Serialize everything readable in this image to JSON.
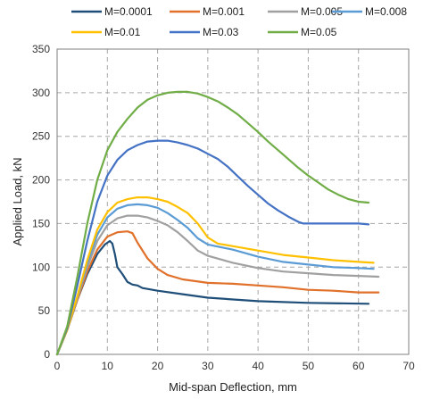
{
  "chart_data": {
    "type": "line",
    "title": "",
    "xlabel": "Mid-span Deflection, mm",
    "ylabel": "Applied Load, kN",
    "xlim": [
      0,
      70
    ],
    "ylim": [
      0,
      350
    ],
    "xticks": [
      "0",
      "10",
      "20",
      "30",
      "40",
      "50",
      "60",
      "70"
    ],
    "yticks": [
      "0",
      "50",
      "100",
      "150",
      "200",
      "250",
      "300",
      "350"
    ],
    "grid": true,
    "legend_position": "top",
    "series": [
      {
        "name": "M=0.0001",
        "color": "#1f4e79",
        "points": [
          [
            0,
            0
          ],
          [
            2,
            28
          ],
          [
            4,
            62
          ],
          [
            6,
            92
          ],
          [
            8,
            115
          ],
          [
            9.5,
            126
          ],
          [
            10.5,
            130
          ],
          [
            11,
            127
          ],
          [
            11.5,
            115
          ],
          [
            12,
            100
          ],
          [
            13,
            92
          ],
          [
            14,
            83
          ],
          [
            15,
            80
          ],
          [
            16,
            79
          ],
          [
            17,
            76
          ],
          [
            20,
            73
          ],
          [
            25,
            69
          ],
          [
            30,
            65
          ],
          [
            40,
            61
          ],
          [
            50,
            59
          ],
          [
            62,
            58
          ]
        ]
      },
      {
        "name": "M=0.001",
        "color": "#e0702a",
        "points": [
          [
            0,
            0
          ],
          [
            2,
            28
          ],
          [
            4,
            62
          ],
          [
            6,
            95
          ],
          [
            8,
            120
          ],
          [
            10,
            135
          ],
          [
            12,
            140
          ],
          [
            14,
            141
          ],
          [
            15,
            139
          ],
          [
            16,
            128
          ],
          [
            18,
            110
          ],
          [
            20,
            98
          ],
          [
            22,
            91
          ],
          [
            25,
            86
          ],
          [
            30,
            82
          ],
          [
            35,
            81
          ],
          [
            40,
            79
          ],
          [
            45,
            77
          ],
          [
            50,
            74
          ],
          [
            55,
            73
          ],
          [
            60,
            71
          ],
          [
            64,
            71
          ]
        ]
      },
      {
        "name": "M=0.005",
        "color": "#a0a0a0",
        "points": [
          [
            0,
            0
          ],
          [
            2,
            28
          ],
          [
            4,
            64
          ],
          [
            6,
            100
          ],
          [
            8,
            130
          ],
          [
            10,
            148
          ],
          [
            12,
            156
          ],
          [
            14,
            159
          ],
          [
            16,
            159
          ],
          [
            18,
            157
          ],
          [
            20,
            153
          ],
          [
            22,
            148
          ],
          [
            24,
            140
          ],
          [
            26,
            130
          ],
          [
            28,
            119
          ],
          [
            30,
            113
          ],
          [
            35,
            105
          ],
          [
            40,
            99
          ],
          [
            45,
            95
          ],
          [
            50,
            93
          ],
          [
            55,
            91
          ],
          [
            60,
            90
          ],
          [
            64,
            89
          ]
        ]
      },
      {
        "name": "M=0.008",
        "color": "#5b9bd5",
        "points": [
          [
            0,
            0
          ],
          [
            2,
            28
          ],
          [
            4,
            65
          ],
          [
            6,
            105
          ],
          [
            8,
            137
          ],
          [
            10,
            157
          ],
          [
            12,
            167
          ],
          [
            14,
            171
          ],
          [
            16,
            172
          ],
          [
            18,
            171
          ],
          [
            20,
            168
          ],
          [
            22,
            162
          ],
          [
            24,
            154
          ],
          [
            26,
            145
          ],
          [
            28,
            133
          ],
          [
            30,
            126
          ],
          [
            35,
            120
          ],
          [
            40,
            112
          ],
          [
            45,
            106
          ],
          [
            50,
            103
          ],
          [
            55,
            100
          ],
          [
            60,
            99
          ],
          [
            63,
            98
          ]
        ]
      },
      {
        "name": "M=0.01",
        "color": "#ffc000",
        "points": [
          [
            0,
            0
          ],
          [
            2,
            28
          ],
          [
            4,
            66
          ],
          [
            6,
            108
          ],
          [
            8,
            143
          ],
          [
            10,
            163
          ],
          [
            12,
            174
          ],
          [
            14,
            178
          ],
          [
            16,
            180
          ],
          [
            18,
            180
          ],
          [
            20,
            178
          ],
          [
            22,
            175
          ],
          [
            24,
            169
          ],
          [
            26,
            162
          ],
          [
            28,
            150
          ],
          [
            30,
            134
          ],
          [
            32,
            127
          ],
          [
            35,
            124
          ],
          [
            40,
            119
          ],
          [
            45,
            114
          ],
          [
            50,
            111
          ],
          [
            55,
            108
          ],
          [
            60,
            106
          ],
          [
            63,
            105
          ]
        ]
      },
      {
        "name": "M=0.03",
        "color": "#4472c4",
        "points": [
          [
            0,
            0
          ],
          [
            2,
            30
          ],
          [
            4,
            78
          ],
          [
            6,
            130
          ],
          [
            8,
            175
          ],
          [
            10,
            205
          ],
          [
            12,
            223
          ],
          [
            14,
            234
          ],
          [
            16,
            240
          ],
          [
            18,
            244
          ],
          [
            20,
            245
          ],
          [
            22,
            245
          ],
          [
            24,
            243
          ],
          [
            26,
            240
          ],
          [
            28,
            236
          ],
          [
            30,
            230
          ],
          [
            32,
            224
          ],
          [
            34,
            215
          ],
          [
            36,
            204
          ],
          [
            38,
            193
          ],
          [
            40,
            183
          ],
          [
            42,
            173
          ],
          [
            44,
            165
          ],
          [
            46,
            158
          ],
          [
            48,
            152
          ],
          [
            49,
            150
          ],
          [
            50,
            150
          ],
          [
            55,
            150
          ],
          [
            60,
            150
          ],
          [
            62,
            149
          ]
        ]
      },
      {
        "name": "M=0.05",
        "color": "#70ad47",
        "points": [
          [
            0,
            0
          ],
          [
            2,
            32
          ],
          [
            4,
            88
          ],
          [
            6,
            150
          ],
          [
            8,
            200
          ],
          [
            10,
            234
          ],
          [
            12,
            255
          ],
          [
            14,
            270
          ],
          [
            16,
            283
          ],
          [
            18,
            292
          ],
          [
            20,
            297
          ],
          [
            22,
            300
          ],
          [
            24,
            301
          ],
          [
            26,
            301
          ],
          [
            28,
            299
          ],
          [
            30,
            295
          ],
          [
            32,
            290
          ],
          [
            34,
            283
          ],
          [
            36,
            275
          ],
          [
            38,
            265
          ],
          [
            40,
            255
          ],
          [
            42,
            244
          ],
          [
            44,
            234
          ],
          [
            46,
            224
          ],
          [
            48,
            214
          ],
          [
            50,
            205
          ],
          [
            52,
            197
          ],
          [
            54,
            189
          ],
          [
            56,
            183
          ],
          [
            58,
            178
          ],
          [
            60,
            175
          ],
          [
            62,
            174
          ]
        ]
      }
    ]
  }
}
